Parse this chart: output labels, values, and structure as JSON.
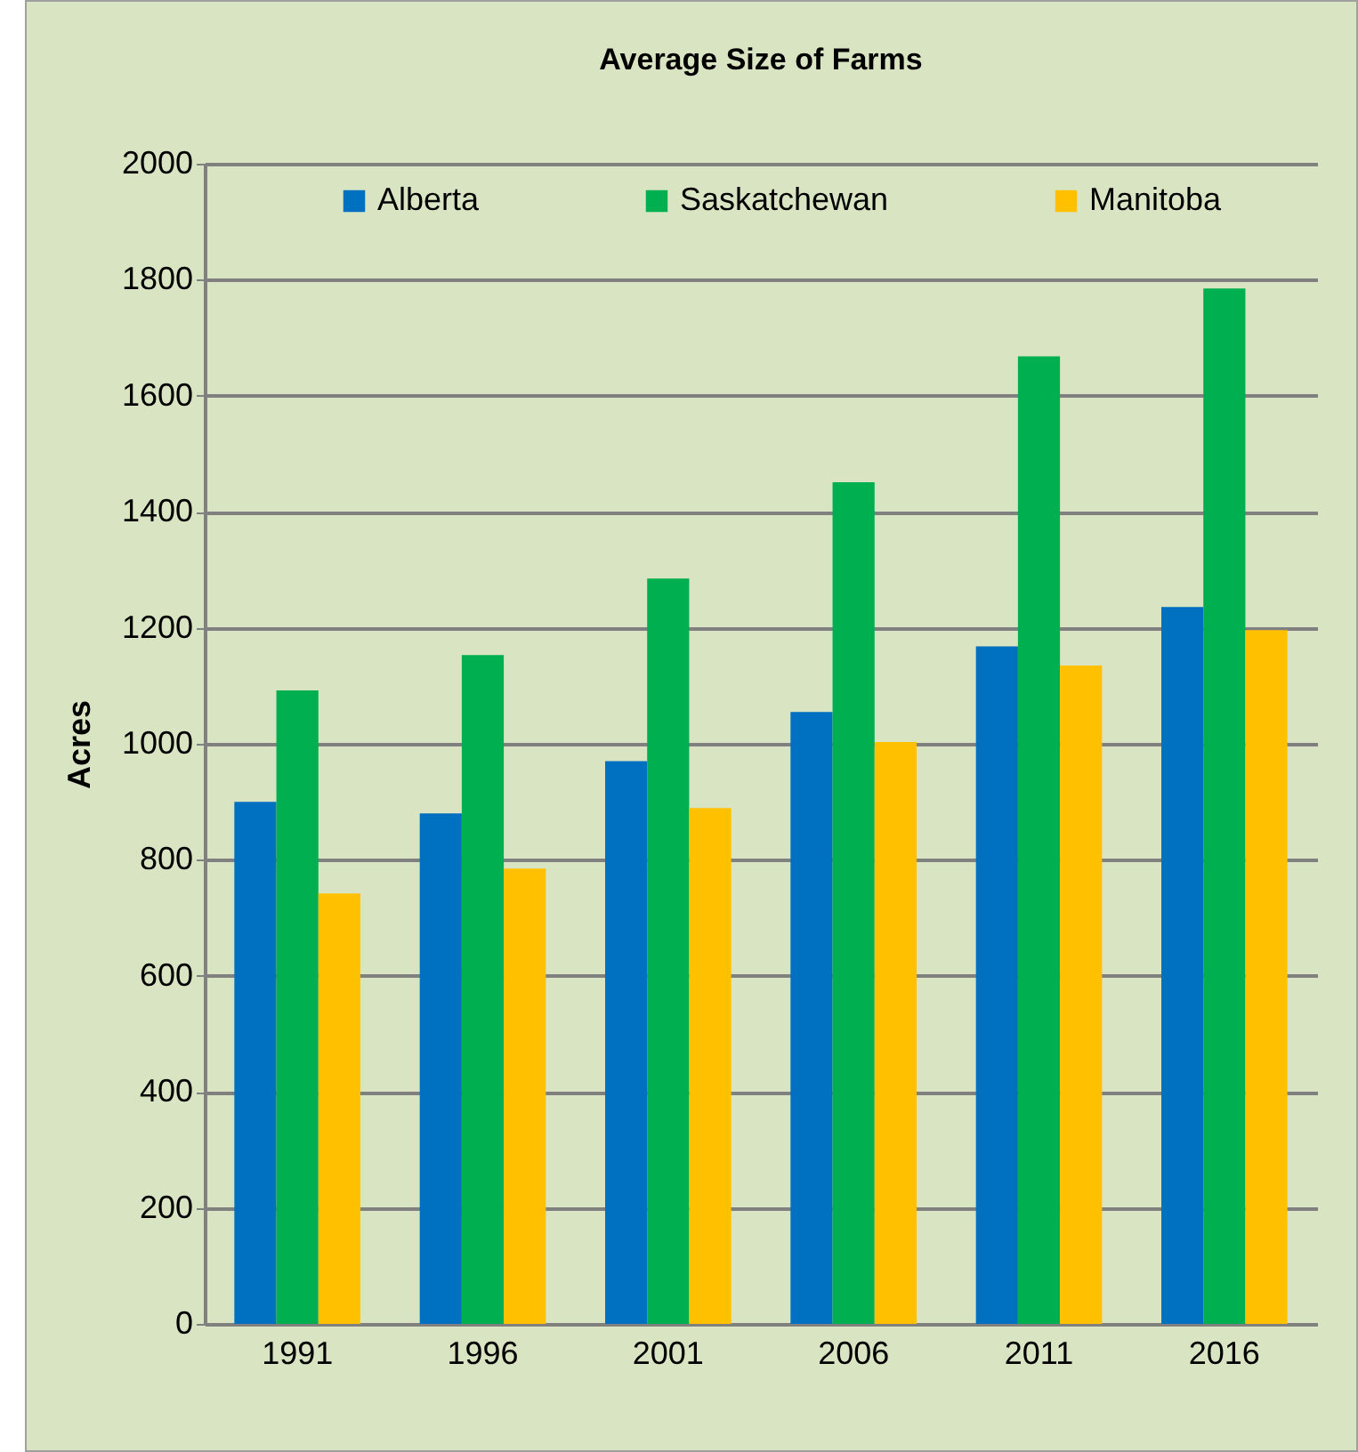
{
  "chart_data": {
    "type": "bar",
    "title": "Average Size of Farms",
    "ylabel": "Acres",
    "categories": [
      "1991",
      "1996",
      "2001",
      "2006",
      "2011",
      "2016"
    ],
    "series": [
      {
        "name": "Alberta",
        "color": "#0070c0",
        "values": [
          900,
          880,
          970,
          1055,
          1168,
          1236
        ]
      },
      {
        "name": "Saskatchewan",
        "color": "#00b050",
        "values": [
          1092,
          1153,
          1285,
          1451,
          1668,
          1785
        ]
      },
      {
        "name": "Manitoba",
        "color": "#ffc000",
        "values": [
          742,
          785,
          889,
          1003,
          1135,
          1196
        ]
      }
    ],
    "ylim": [
      0,
      2000
    ],
    "yticks": [
      0,
      200,
      400,
      600,
      800,
      1000,
      1200,
      1400,
      1600,
      1800,
      2000
    ],
    "grid": "y",
    "legend": "top"
  }
}
